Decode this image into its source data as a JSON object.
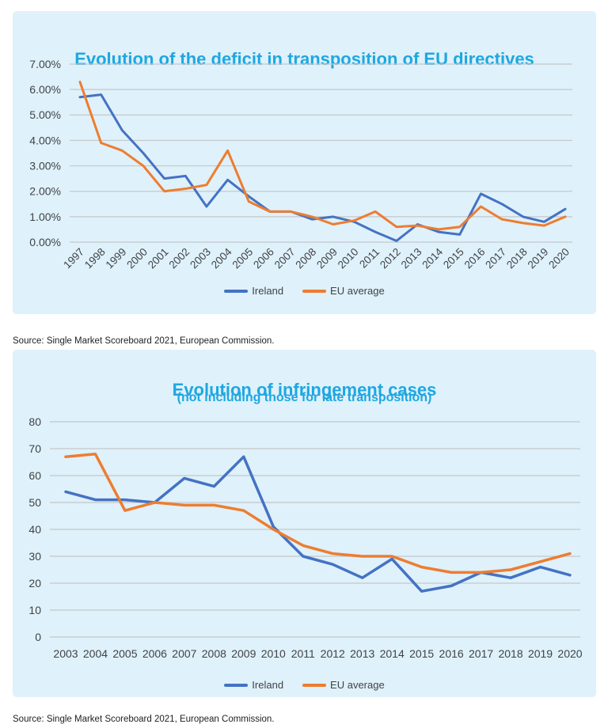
{
  "colors": {
    "panel_bg": "#dff1fa",
    "title": "#1ea7e1",
    "ireland": "#4472c4",
    "eu_average": "#ed7d31",
    "gridline": "#c5c8c9",
    "axis_text": "#404346"
  },
  "source_notes": [
    "Source: Single Market Scoreboard 2021, European Commission.",
    "Source: Single Market Scoreboard 2021, European Commission."
  ],
  "chart_data": [
    {
      "type": "line",
      "title": "Evolution of the deficit in transposition of EU directives",
      "subtitle": "",
      "categories": [
        "1997",
        "1998",
        "1999",
        "2000",
        "2001",
        "2002",
        "2003",
        "2004",
        "2005",
        "2006",
        "2007",
        "2008",
        "2009",
        "2010",
        "2011",
        "2012",
        "2013",
        "2014",
        "2015",
        "2016",
        "2017",
        "2018",
        "2019",
        "2020"
      ],
      "series": [
        {
          "name": "Ireland",
          "color": "#4472c4",
          "values": [
            5.7,
            5.8,
            4.4,
            3.5,
            2.5,
            2.6,
            1.4,
            2.45,
            1.8,
            1.2,
            1.2,
            0.9,
            1.0,
            0.8,
            0.4,
            0.05,
            0.7,
            0.4,
            0.3,
            1.9,
            1.5,
            1.0,
            0.8,
            1.3
          ]
        },
        {
          "name": "EU average",
          "color": "#ed7d31",
          "values": [
            6.3,
            3.9,
            3.6,
            3.0,
            2.0,
            2.1,
            2.25,
            3.6,
            1.6,
            1.2,
            1.2,
            1.0,
            0.7,
            0.85,
            1.2,
            0.6,
            0.65,
            0.5,
            0.6,
            1.4,
            0.9,
            0.75,
            0.65,
            1.0
          ]
        }
      ],
      "xlabel": "",
      "ylabel": "",
      "ylim": [
        0,
        7
      ],
      "ytick_labels": [
        "0.00%",
        "1.00%",
        "2.00%",
        "3.00%",
        "4.00%",
        "5.00%",
        "6.00%",
        "7.00%"
      ],
      "grid": true,
      "legend_position": "bottom",
      "x_label_rotation": -45
    },
    {
      "type": "line",
      "title": "Evolution of infringement cases",
      "subtitle": "(not including those for late transposition)",
      "categories": [
        "2003",
        "2004",
        "2005",
        "2006",
        "2007",
        "2008",
        "2009",
        "2010",
        "2011",
        "2012",
        "2013",
        "2014",
        "2015",
        "2016",
        "2017",
        "2018",
        "2019",
        "2020"
      ],
      "series": [
        {
          "name": "Ireland",
          "color": "#4472c4",
          "values": [
            54,
            51,
            51,
            50,
            59,
            56,
            67,
            41,
            30,
            27,
            22,
            29,
            17,
            19,
            24,
            22,
            26,
            23
          ]
        },
        {
          "name": "EU average",
          "color": "#ed7d31",
          "values": [
            67,
            68,
            47,
            50,
            49,
            49,
            47,
            40,
            34,
            31,
            30,
            30,
            26,
            24,
            24,
            25,
            28,
            31
          ]
        }
      ],
      "xlabel": "",
      "ylabel": "",
      "ylim": [
        0,
        80
      ],
      "ytick_labels": [
        "0",
        "10",
        "20",
        "30",
        "40",
        "50",
        "60",
        "70",
        "80"
      ],
      "grid": true,
      "legend_position": "bottom",
      "x_label_rotation": 0
    }
  ]
}
